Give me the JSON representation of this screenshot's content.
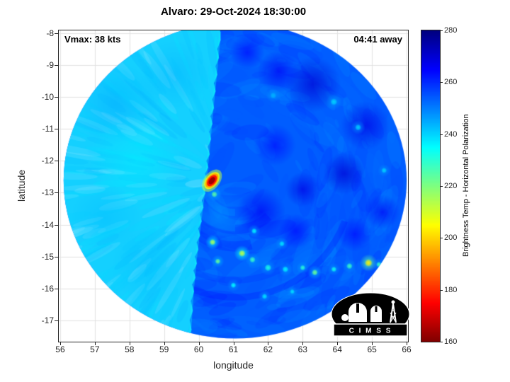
{
  "title": "Alvaro: 29-Oct-2024 18:30:00",
  "annotations": {
    "vmax": "Vmax: 38 kts",
    "away": "04:41 away"
  },
  "axes": {
    "xlabel": "longitude",
    "ylabel": "latitude",
    "x_ticks": [
      56,
      57,
      58,
      59,
      60,
      61,
      62,
      63,
      64,
      65,
      66
    ],
    "y_ticks": [
      -8,
      -9,
      -10,
      -11,
      -12,
      -13,
      -14,
      -15,
      -16,
      -17
    ]
  },
  "colorbar": {
    "label": "Brightness Temp - Horizontal Polarization",
    "ticks": [
      160,
      180,
      200,
      220,
      240,
      260,
      280
    ],
    "min": 160,
    "max": 280
  },
  "logo": {
    "text": "C I M S S"
  },
  "chart_data": {
    "type": "heatmap",
    "title": "Alvaro: 29-Oct-2024 18:30:00",
    "xlabel": "longitude",
    "ylabel": "latitude",
    "xlim": [
      55.96,
      66.04
    ],
    "ylim": [
      -17.67,
      -7.91
    ],
    "grid": true,
    "value_label": "Brightness Temp - Horizontal Polarization",
    "value_range_K": [
      160,
      280
    ],
    "colormap": "jet reversed (280 K = dark blue, 160 K = dark red)",
    "swath": {
      "center": [
        61.05,
        -12.62
      ],
      "radius_deg": 4.95
    },
    "base_temp": 254,
    "left_sector_temp": 241,
    "seam": [
      [
        60.62,
        -7.95
      ],
      [
        60.5,
        -9.3
      ],
      [
        60.38,
        -10.6
      ],
      [
        60.28,
        -11.8
      ],
      [
        60.18,
        -12.8
      ],
      [
        60.05,
        -13.9
      ],
      [
        59.93,
        -15.0
      ],
      [
        59.83,
        -16.1
      ],
      [
        59.74,
        -17.6
      ]
    ],
    "hotspot": {
      "lon": 60.38,
      "lat": -12.62,
      "min_temp": 162
    },
    "dark_patches": [
      [
        63.3,
        -9.6,
        270,
        0.8
      ],
      [
        64.8,
        -10.9,
        268,
        0.7
      ],
      [
        64.2,
        -12.4,
        270,
        0.6
      ],
      [
        65.3,
        -13.6,
        266,
        0.5
      ],
      [
        62.3,
        -9.2,
        266,
        0.6
      ],
      [
        61.4,
        -8.6,
        264,
        0.5
      ],
      [
        63.0,
        -12.9,
        268,
        0.5
      ],
      [
        62.2,
        -11.5,
        264,
        0.6
      ],
      [
        64.5,
        -14.3,
        264,
        0.5
      ],
      [
        61.8,
        -13.6,
        266,
        0.7
      ],
      [
        62.8,
        -14.2,
        264,
        0.5
      ]
    ],
    "soft_patches": [
      [
        57.6,
        -10.2,
        246,
        1.2,
        0.4
      ],
      [
        58.2,
        -12.0,
        236,
        1.4,
        0.45
      ],
      [
        57.3,
        -13.8,
        243,
        1.0,
        0.4
      ],
      [
        58.6,
        -15.3,
        243,
        1.1,
        0.4
      ],
      [
        59.3,
        -9.3,
        245,
        1.0,
        0.35
      ],
      [
        60.6,
        -13.8,
        245,
        0.9,
        0.4
      ]
    ],
    "speckles": [
      [
        61.25,
        -14.9,
        212,
        0.1
      ],
      [
        61.55,
        -15.1,
        228,
        0.09
      ],
      [
        62.0,
        -15.35,
        232,
        0.1
      ],
      [
        62.5,
        -15.4,
        236,
        0.09
      ],
      [
        63.0,
        -15.35,
        230,
        0.08
      ],
      [
        63.35,
        -15.5,
        222,
        0.09
      ],
      [
        63.9,
        -15.4,
        233,
        0.08
      ],
      [
        64.35,
        -15.3,
        228,
        0.09
      ],
      [
        64.9,
        -15.2,
        203,
        0.11
      ],
      [
        65.2,
        -15.25,
        228,
        0.08
      ],
      [
        65.55,
        -15.1,
        236,
        0.08
      ],
      [
        60.4,
        -14.55,
        214,
        0.09
      ],
      [
        60.55,
        -15.15,
        222,
        0.08
      ],
      [
        61.0,
        -15.9,
        235,
        0.08
      ],
      [
        61.9,
        -16.25,
        238,
        0.08
      ],
      [
        62.7,
        -16.1,
        238,
        0.07
      ],
      [
        60.45,
        -13.05,
        224,
        0.09
      ],
      [
        63.9,
        -10.15,
        240,
        0.1
      ],
      [
        64.6,
        -10.95,
        241,
        0.09
      ],
      [
        65.35,
        -12.3,
        240,
        0.08
      ],
      [
        62.15,
        -9.95,
        244,
        0.09
      ],
      [
        61.6,
        -14.2,
        236,
        0.08
      ],
      [
        62.4,
        -14.6,
        238,
        0.08
      ]
    ]
  }
}
